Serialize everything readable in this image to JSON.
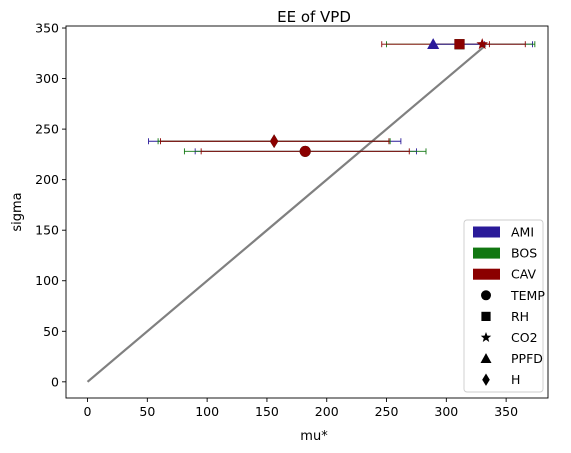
{
  "chart_data": {
    "type": "scatter",
    "title": "EE of VPD",
    "xlabel": "mu*",
    "ylabel": "sigma",
    "xlim": [
      -18,
      385
    ],
    "ylim": [
      -16,
      352
    ],
    "xticks": [
      0,
      50,
      100,
      150,
      200,
      250,
      300,
      350
    ],
    "yticks": [
      0,
      50,
      100,
      150,
      200,
      250,
      300,
      350
    ],
    "grid": false,
    "legend_position": "lower-right",
    "sites": [
      {
        "name": "AMI",
        "color": "#2a1a99"
      },
      {
        "name": "BOS",
        "color": "#117711"
      },
      {
        "name": "CAV",
        "color": "#8b0000"
      }
    ],
    "factors": [
      {
        "name": "TEMP",
        "marker": "circle"
      },
      {
        "name": "RH",
        "marker": "square"
      },
      {
        "name": "CO2",
        "marker": "star"
      },
      {
        "name": "PPFD",
        "marker": "triangle"
      },
      {
        "name": "H",
        "marker": "diamond"
      }
    ],
    "reference_line": {
      "x": [
        0,
        333
      ],
      "y": [
        0,
        333
      ],
      "color": "#808080"
    },
    "points": [
      {
        "site": "AMI",
        "factor": "H",
        "x": 156,
        "y": 238,
        "xerr": [
          51,
          262
        ]
      },
      {
        "site": "BOS",
        "factor": "H",
        "x": 156,
        "y": 238,
        "xerr": [
          59,
          253
        ]
      },
      {
        "site": "CAV",
        "factor": "H",
        "x": 156,
        "y": 238,
        "xerr": [
          61,
          252
        ]
      },
      {
        "site": "AMI",
        "factor": "TEMP",
        "x": 182,
        "y": 228,
        "xerr": [
          90,
          275
        ]
      },
      {
        "site": "BOS",
        "factor": "TEMP",
        "x": 182,
        "y": 228,
        "xerr": [
          81,
          283
        ]
      },
      {
        "site": "CAV",
        "factor": "TEMP",
        "x": 182,
        "y": 228,
        "xerr": [
          95,
          269
        ]
      },
      {
        "site": "AMI",
        "factor": "RH",
        "x": 311,
        "y": 334,
        "xerr": [
          288,
          372
        ]
      },
      {
        "site": "BOS",
        "factor": "RH",
        "x": 311,
        "y": 334,
        "xerr": [
          250,
          374
        ]
      },
      {
        "site": "CAV",
        "factor": "RH",
        "x": 311,
        "y": 334,
        "xerr": [
          246,
          366
        ]
      },
      {
        "site": "AMI",
        "factor": "PPFD",
        "x": 289,
        "y": 334,
        "xerr": [
          289,
          332
        ]
      },
      {
        "site": "CAV",
        "factor": "CO2",
        "x": 330,
        "y": 334,
        "xerr": [
          330,
          336
        ]
      }
    ]
  }
}
